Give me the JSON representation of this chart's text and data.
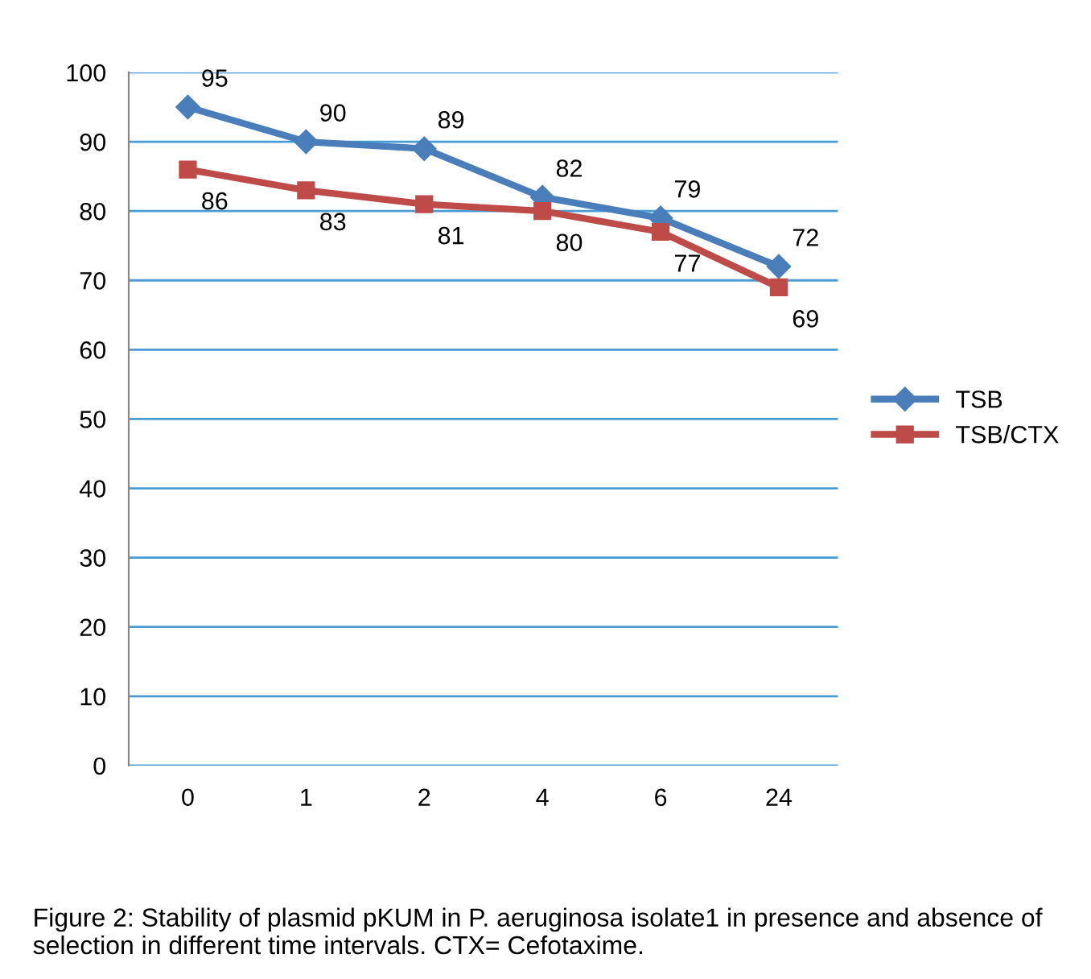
{
  "chart_data": {
    "type": "line",
    "categories": [
      "0",
      "1",
      "2",
      "4",
      "6",
      "24"
    ],
    "series": [
      {
        "name": "TSB",
        "color": "#4a7ebb",
        "values": [
          95,
          90,
          89,
          82,
          79,
          72
        ],
        "marker": "diamond"
      },
      {
        "name": "TSB/CTX",
        "color": "#be4b48",
        "values": [
          86,
          83,
          81,
          80,
          77,
          69
        ],
        "marker": "square"
      }
    ],
    "ylim": [
      0,
      100
    ],
    "yticks": [
      0,
      10,
      20,
      30,
      40,
      50,
      60,
      70,
      80,
      90,
      100
    ],
    "grid": "y",
    "legend": "right",
    "data_labels": true,
    "annotations": [
      "Figure 2: Stability of plasmid pKUM in P. aeruginosa isolate1 in presence and absence of selection in different time intervals. CTX= Cefotaxime."
    ]
  }
}
